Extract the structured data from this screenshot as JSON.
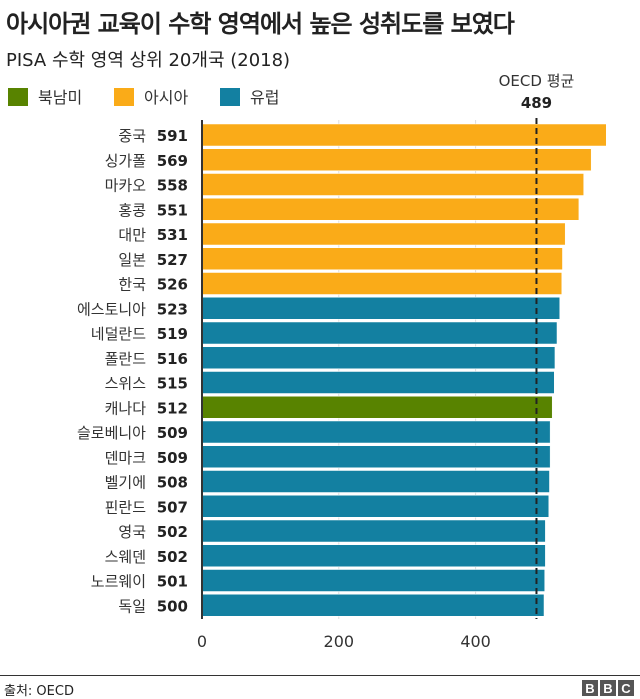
{
  "chart_data": {
    "type": "bar",
    "orientation": "horizontal",
    "title": "아시아권 교육이 수학 영역에서 높은 성취도를 보였다",
    "subtitle": "PISA 수학 영역 상위 20개국 (2018)",
    "legend": [
      {
        "label": "북남미",
        "color": "#588300"
      },
      {
        "label": "아시아",
        "color": "#FAAB18"
      },
      {
        "label": "유럽",
        "color": "#1380A1"
      }
    ],
    "legend_position": "top-left",
    "categories": [
      "중국",
      "싱가폴",
      "마카오",
      "홍콩",
      "대만",
      "일본",
      "한국",
      "에스토니아",
      "네덜란드",
      "폴란드",
      "스위스",
      "캐나다",
      "슬로베니아",
      "덴마크",
      "벨기에",
      "핀란드",
      "영국",
      "스웨덴",
      "노르웨이",
      "독일"
    ],
    "values": [
      591,
      569,
      558,
      551,
      531,
      527,
      526,
      523,
      519,
      516,
      515,
      512,
      509,
      509,
      508,
      507,
      502,
      502,
      501,
      500
    ],
    "regions": [
      "아시아",
      "아시아",
      "아시아",
      "아시아",
      "아시아",
      "아시아",
      "아시아",
      "유럽",
      "유럽",
      "유럽",
      "유럽",
      "북남미",
      "유럽",
      "유럽",
      "유럽",
      "유럽",
      "유럽",
      "유럽",
      "유럽",
      "유럽"
    ],
    "reference_line": {
      "label": "OECD 평균",
      "value": 489
    },
    "xticks": [
      0,
      200,
      400
    ],
    "xlim": [
      0,
      600
    ],
    "grid": true
  },
  "footer": {
    "source": "출처: OECD",
    "logo": [
      "B",
      "B",
      "C"
    ]
  }
}
